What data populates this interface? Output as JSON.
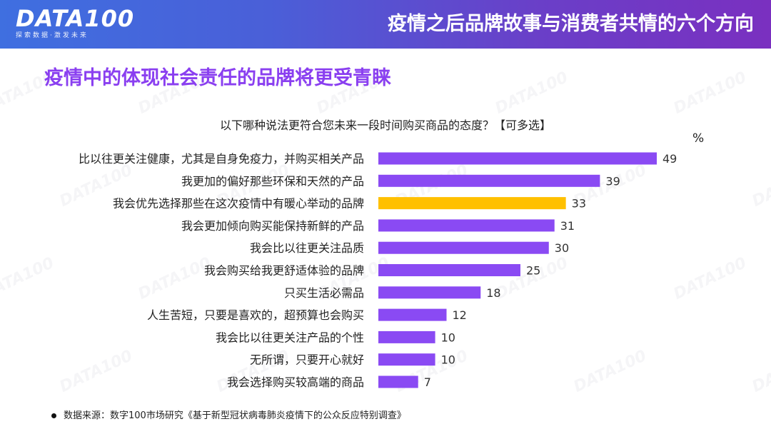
{
  "header": {
    "logo_text": "DATA100",
    "logo_tagline": "探索数据·激发未来",
    "title": "疫情之后品牌故事与消费者共情的六个方向"
  },
  "section_title": "疫情中的体现社会责任的品牌将更受青睐",
  "chart_data": {
    "type": "bar",
    "orientation": "horizontal",
    "title": "以下哪种说法更符合您未来一段时间购买商品的态度？【可多选】",
    "unit": "%",
    "categories": [
      "比以往更关注健康，尤其是自身免疫力，并购买相关产品",
      "我更加的偏好那些环保和天然的产品",
      "我会优先选择那些在这次疫情中有暖心举动的品牌",
      "我会更加倾向购买能保持新鲜的产品",
      "我会比以往更关注品质",
      "我会购买给我更舒适体验的品牌",
      "只买生活必需品",
      "人生苦短，只要是喜欢的，超预算也会购买",
      "我会比以往更关注产品的个性",
      "无所谓，只要开心就好",
      "我会选择购买较高端的商品"
    ],
    "values": [
      49,
      39,
      33,
      31,
      30,
      25,
      18,
      12,
      10,
      10,
      7
    ],
    "highlight_index": 2,
    "colors": {
      "default": "#8a4af3",
      "highlight": "#ffc000"
    },
    "xlim": [
      0,
      49
    ]
  },
  "footnote": "数据来源：数字100市场研究《基于新型冠状病毒肺炎疫情下的公众反应特别调查》"
}
